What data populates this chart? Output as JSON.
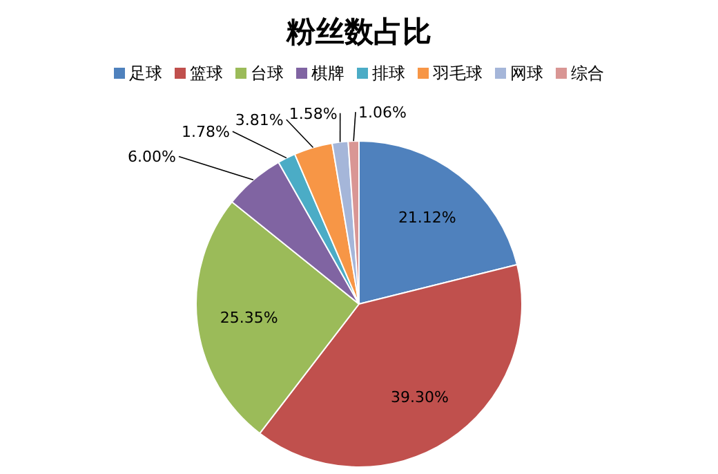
{
  "chart_data": {
    "type": "pie",
    "title": "粉丝数占比",
    "categories": [
      "足球",
      "篮球",
      "台球",
      "棋牌",
      "排球",
      "羽毛球",
      "网球",
      "综合"
    ],
    "values": [
      21.12,
      39.3,
      25.35,
      6.0,
      1.78,
      3.81,
      1.58,
      1.06
    ],
    "colors": [
      "#4f81bd",
      "#c0504d",
      "#9bbb59",
      "#8064a2",
      "#4bacc6",
      "#f79646",
      "#a5b6d9",
      "#d99694"
    ],
    "value_labels": [
      "21.12%",
      "39.30%",
      "25.35%",
      "6.00%",
      "1.78%",
      "3.81%",
      "1.58%",
      "1.06%"
    ],
    "legend": "top"
  }
}
